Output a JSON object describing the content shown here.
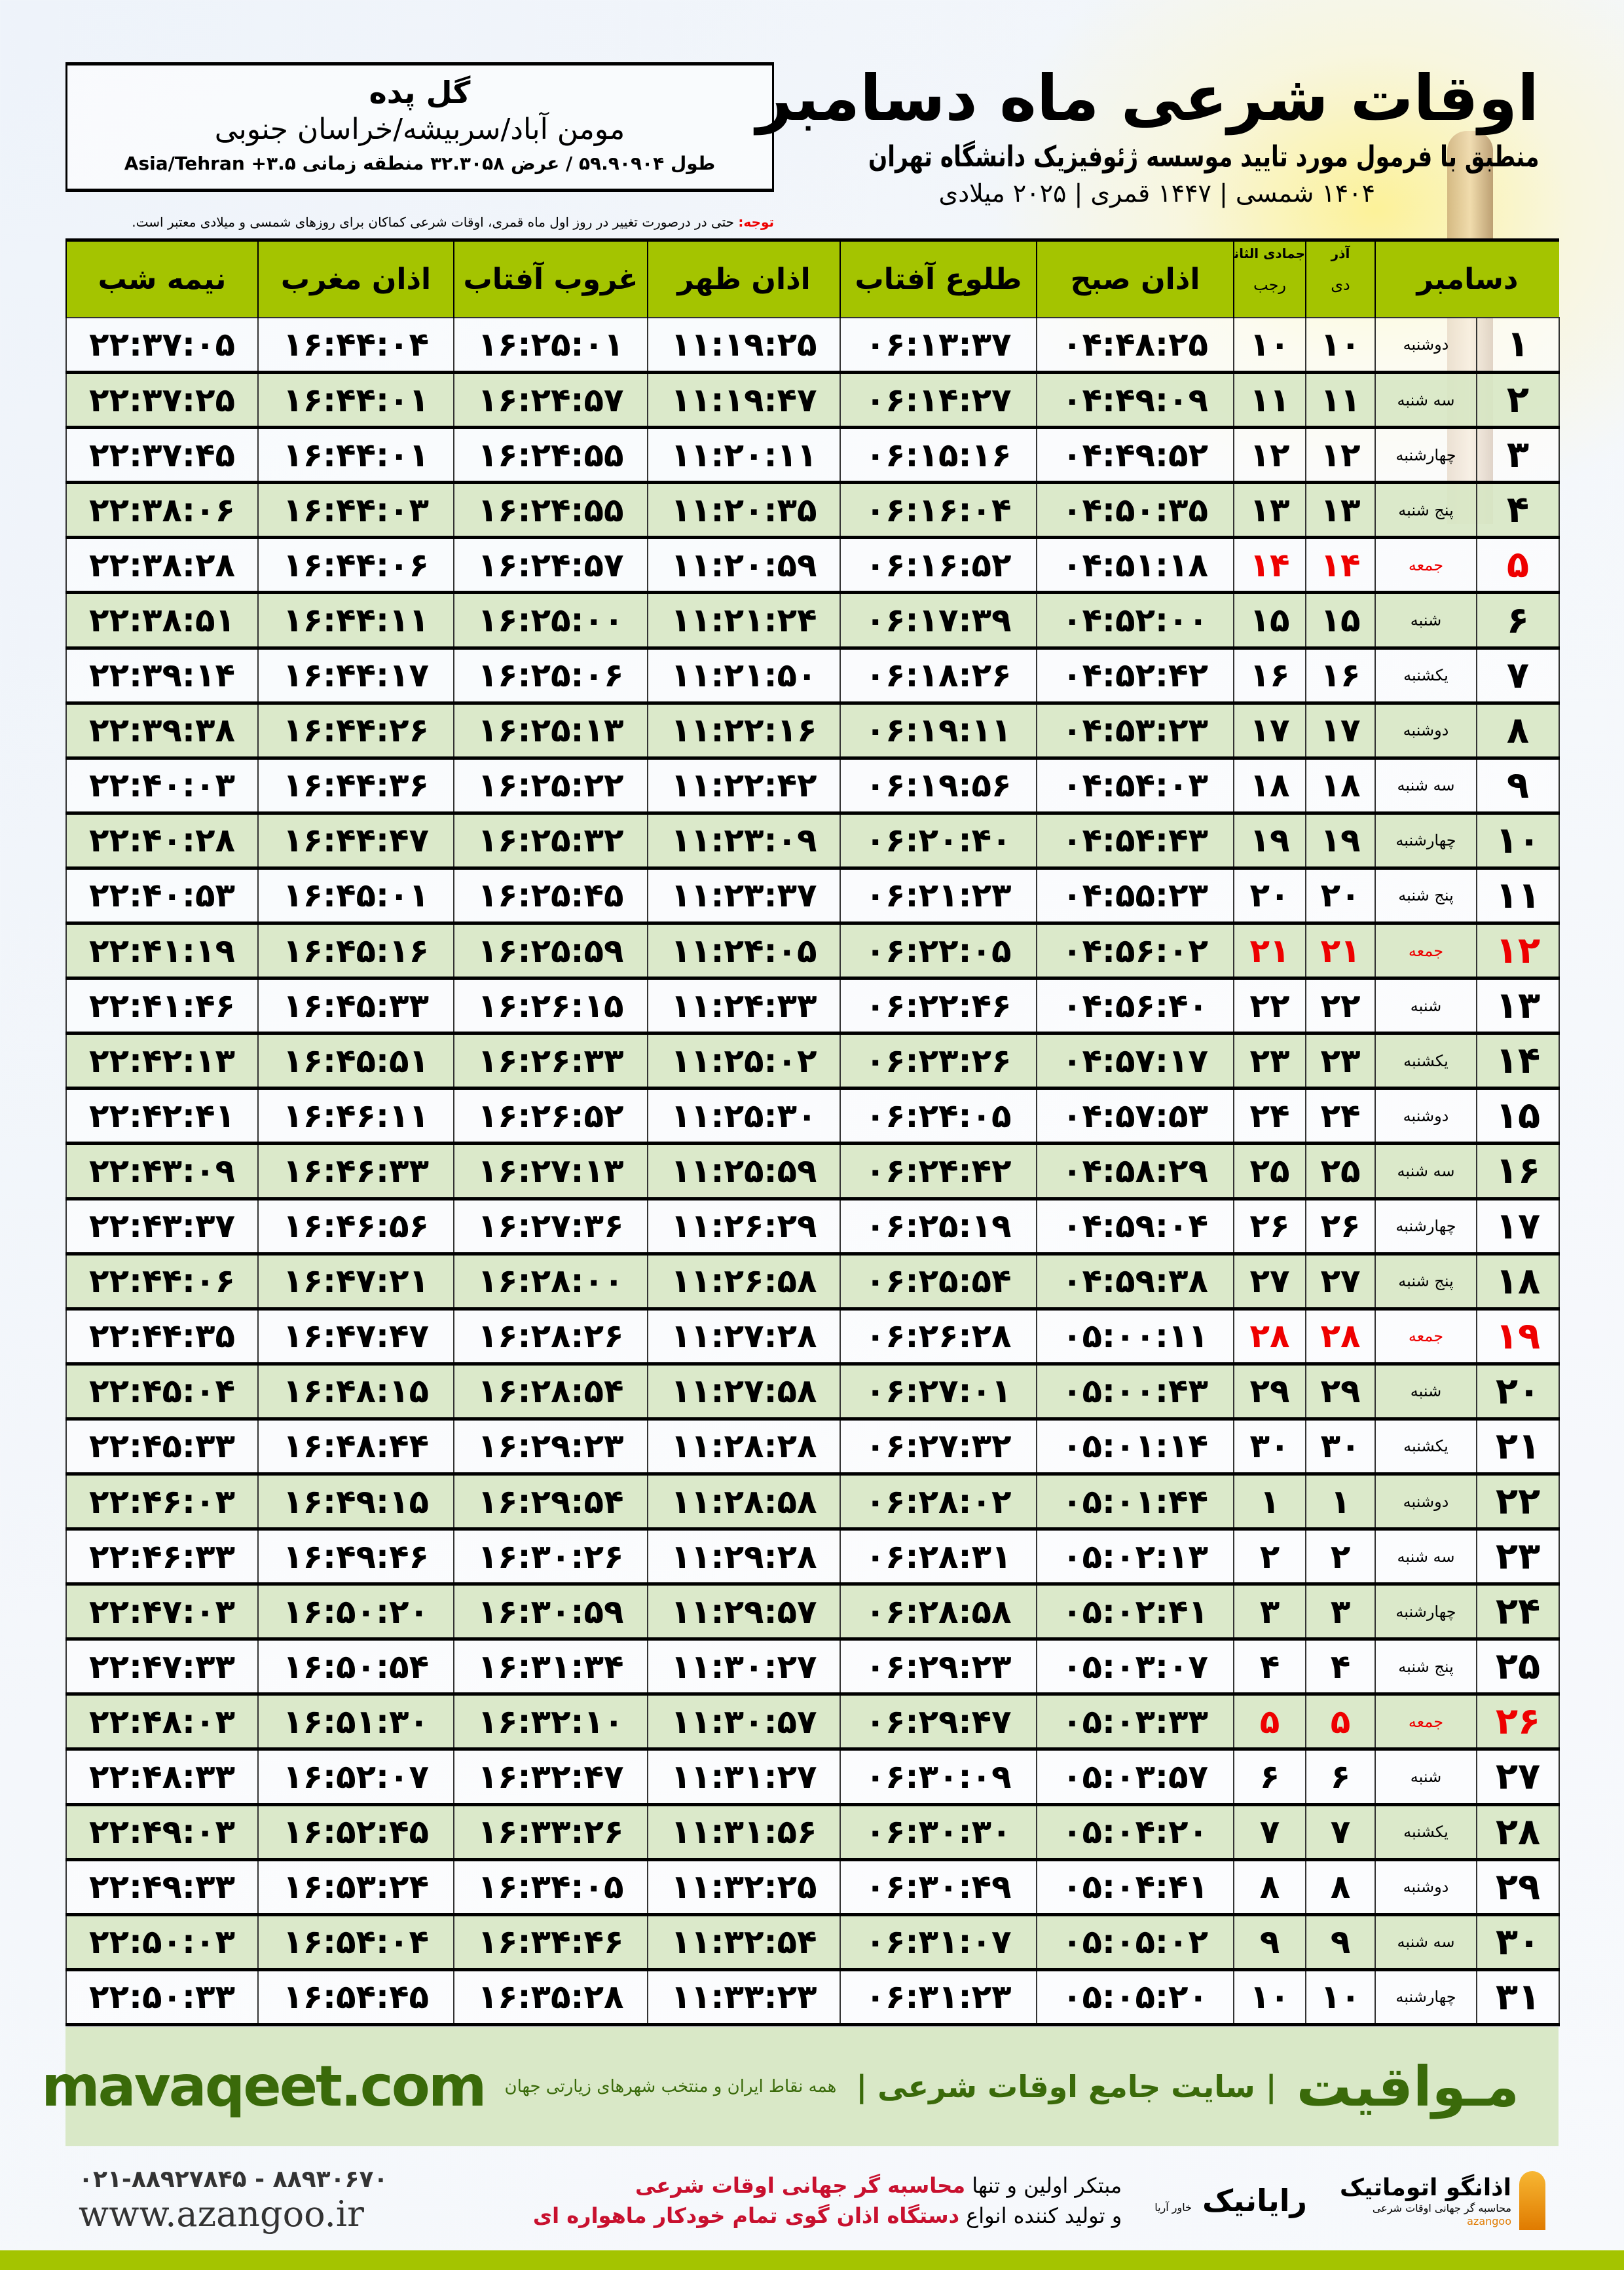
{
  "location": {
    "name": "گل پده",
    "path": "مومن آباد/سربیشه/خراسان جنوبی",
    "coords": "طول ۵۹.۹۰۹۰۴ / عرض ۳۲.۳۰۵۸ منطقه زمانی ۳.۵+ Asia/Tehran"
  },
  "header": {
    "title": "اوقات شرعی ماه دسامبر",
    "subtitle": "منطبق با فرمول مورد تایید موسسه ژئوفیزیک دانشگاه تهران",
    "years": "۱۴۰۴ شمسی | ۱۴۴۷ قمری | ۲۰۲۵ میلادی",
    "note_label": "توجه:",
    "note_text": " حتی در درصورت تغییر در روز اول ماه قمری، اوقات شرعی کماکان برای روزهای شمسی و میلادی معتبر است."
  },
  "table": {
    "headers": {
      "day": "دسامبر",
      "shamsi_months": "آذر",
      "shamsi_sub": "دی",
      "qamari_months": "جمادی الثانی",
      "qamari_sub": "رجب",
      "sobh": "اذان صبح",
      "tolu": "طلوع آفتاب",
      "zohr": "اذان ظهر",
      "ghorub": "غروب آفتاب",
      "maghreb": "اذان مغرب",
      "nimeshab": "نیمه شب"
    },
    "friday_color": "#e00000",
    "header_color": "#a4c400",
    "rows": [
      [
        "۱",
        "دوشنبه",
        "۱۰",
        "۱۰",
        "۰۴:۴۸:۲۵",
        "۰۶:۱۳:۳۷",
        "۱۱:۱۹:۲۵",
        "۱۶:۲۵:۰۱",
        "۱۶:۴۴:۰۴",
        "۲۲:۳۷:۰۵"
      ],
      [
        "۲",
        "سه شنبه",
        "۱۱",
        "۱۱",
        "۰۴:۴۹:۰۹",
        "۰۶:۱۴:۲۷",
        "۱۱:۱۹:۴۷",
        "۱۶:۲۴:۵۷",
        "۱۶:۴۴:۰۱",
        "۲۲:۳۷:۲۵"
      ],
      [
        "۳",
        "چهارشنبه",
        "۱۲",
        "۱۲",
        "۰۴:۴۹:۵۲",
        "۰۶:۱۵:۱۶",
        "۱۱:۲۰:۱۱",
        "۱۶:۲۴:۵۵",
        "۱۶:۴۴:۰۱",
        "۲۲:۳۷:۴۵"
      ],
      [
        "۴",
        "پنج شنبه",
        "۱۳",
        "۱۳",
        "۰۴:۵۰:۳۵",
        "۰۶:۱۶:۰۴",
        "۱۱:۲۰:۳۵",
        "۱۶:۲۴:۵۵",
        "۱۶:۴۴:۰۳",
        "۲۲:۳۸:۰۶"
      ],
      [
        "۵",
        "جمعه",
        "۱۴",
        "۱۴",
        "۰۴:۵۱:۱۸",
        "۰۶:۱۶:۵۲",
        "۱۱:۲۰:۵۹",
        "۱۶:۲۴:۵۷",
        "۱۶:۴۴:۰۶",
        "۲۲:۳۸:۲۸"
      ],
      [
        "۶",
        "شنبه",
        "۱۵",
        "۱۵",
        "۰۴:۵۲:۰۰",
        "۰۶:۱۷:۳۹",
        "۱۱:۲۱:۲۴",
        "۱۶:۲۵:۰۰",
        "۱۶:۴۴:۱۱",
        "۲۲:۳۸:۵۱"
      ],
      [
        "۷",
        "یکشنبه",
        "۱۶",
        "۱۶",
        "۰۴:۵۲:۴۲",
        "۰۶:۱۸:۲۶",
        "۱۱:۲۱:۵۰",
        "۱۶:۲۵:۰۶",
        "۱۶:۴۴:۱۷",
        "۲۲:۳۹:۱۴"
      ],
      [
        "۸",
        "دوشنبه",
        "۱۷",
        "۱۷",
        "۰۴:۵۳:۲۳",
        "۰۶:۱۹:۱۱",
        "۱۱:۲۲:۱۶",
        "۱۶:۲۵:۱۳",
        "۱۶:۴۴:۲۶",
        "۲۲:۳۹:۳۸"
      ],
      [
        "۹",
        "سه شنبه",
        "۱۸",
        "۱۸",
        "۰۴:۵۴:۰۳",
        "۰۶:۱۹:۵۶",
        "۱۱:۲۲:۴۲",
        "۱۶:۲۵:۲۲",
        "۱۶:۴۴:۳۶",
        "۲۲:۴۰:۰۳"
      ],
      [
        "۱۰",
        "چهارشنبه",
        "۱۹",
        "۱۹",
        "۰۴:۵۴:۴۳",
        "۰۶:۲۰:۴۰",
        "۱۱:۲۳:۰۹",
        "۱۶:۲۵:۳۲",
        "۱۶:۴۴:۴۷",
        "۲۲:۴۰:۲۸"
      ],
      [
        "۱۱",
        "پنج شنبه",
        "۲۰",
        "۲۰",
        "۰۴:۵۵:۲۳",
        "۰۶:۲۱:۲۳",
        "۱۱:۲۳:۳۷",
        "۱۶:۲۵:۴۵",
        "۱۶:۴۵:۰۱",
        "۲۲:۴۰:۵۳"
      ],
      [
        "۱۲",
        "جمعه",
        "۲۱",
        "۲۱",
        "۰۴:۵۶:۰۲",
        "۰۶:۲۲:۰۵",
        "۱۱:۲۴:۰۵",
        "۱۶:۲۵:۵۹",
        "۱۶:۴۵:۱۶",
        "۲۲:۴۱:۱۹"
      ],
      [
        "۱۳",
        "شنبه",
        "۲۲",
        "۲۲",
        "۰۴:۵۶:۴۰",
        "۰۶:۲۲:۴۶",
        "۱۱:۲۴:۳۳",
        "۱۶:۲۶:۱۵",
        "۱۶:۴۵:۳۳",
        "۲۲:۴۱:۴۶"
      ],
      [
        "۱۴",
        "یکشنبه",
        "۲۳",
        "۲۳",
        "۰۴:۵۷:۱۷",
        "۰۶:۲۳:۲۶",
        "۱۱:۲۵:۰۲",
        "۱۶:۲۶:۳۳",
        "۱۶:۴۵:۵۱",
        "۲۲:۴۲:۱۳"
      ],
      [
        "۱۵",
        "دوشنبه",
        "۲۴",
        "۲۴",
        "۰۴:۵۷:۵۳",
        "۰۶:۲۴:۰۵",
        "۱۱:۲۵:۳۰",
        "۱۶:۲۶:۵۲",
        "۱۶:۴۶:۱۱",
        "۲۲:۴۲:۴۱"
      ],
      [
        "۱۶",
        "سه شنبه",
        "۲۵",
        "۲۵",
        "۰۴:۵۸:۲۹",
        "۰۶:۲۴:۴۲",
        "۱۱:۲۵:۵۹",
        "۱۶:۲۷:۱۳",
        "۱۶:۴۶:۳۳",
        "۲۲:۴۳:۰۹"
      ],
      [
        "۱۷",
        "چهارشنبه",
        "۲۶",
        "۲۶",
        "۰۴:۵۹:۰۴",
        "۰۶:۲۵:۱۹",
        "۱۱:۲۶:۲۹",
        "۱۶:۲۷:۳۶",
        "۱۶:۴۶:۵۶",
        "۲۲:۴۳:۳۷"
      ],
      [
        "۱۸",
        "پنج شنبه",
        "۲۷",
        "۲۷",
        "۰۴:۵۹:۳۸",
        "۰۶:۲۵:۵۴",
        "۱۱:۲۶:۵۸",
        "۱۶:۲۸:۰۰",
        "۱۶:۴۷:۲۱",
        "۲۲:۴۴:۰۶"
      ],
      [
        "۱۹",
        "جمعه",
        "۲۸",
        "۲۸",
        "۰۵:۰۰:۱۱",
        "۰۶:۲۶:۲۸",
        "۱۱:۲۷:۲۸",
        "۱۶:۲۸:۲۶",
        "۱۶:۴۷:۴۷",
        "۲۲:۴۴:۳۵"
      ],
      [
        "۲۰",
        "شنبه",
        "۲۹",
        "۲۹",
        "۰۵:۰۰:۴۳",
        "۰۶:۲۷:۰۱",
        "۱۱:۲۷:۵۸",
        "۱۶:۲۸:۵۴",
        "۱۶:۴۸:۱۵",
        "۲۲:۴۵:۰۴"
      ],
      [
        "۲۱",
        "یکشنبه",
        "۳۰",
        "۳۰",
        "۰۵:۰۱:۱۴",
        "۰۶:۲۷:۳۲",
        "۱۱:۲۸:۲۸",
        "۱۶:۲۹:۲۳",
        "۱۶:۴۸:۴۴",
        "۲۲:۴۵:۳۳"
      ],
      [
        "۲۲",
        "دوشنبه",
        "۱",
        "۱",
        "۰۵:۰۱:۴۴",
        "۰۶:۲۸:۰۲",
        "۱۱:۲۸:۵۸",
        "۱۶:۲۹:۵۴",
        "۱۶:۴۹:۱۵",
        "۲۲:۴۶:۰۳"
      ],
      [
        "۲۳",
        "سه شنبه",
        "۲",
        "۲",
        "۰۵:۰۲:۱۳",
        "۰۶:۲۸:۳۱",
        "۱۱:۲۹:۲۸",
        "۱۶:۳۰:۲۶",
        "۱۶:۴۹:۴۶",
        "۲۲:۴۶:۳۳"
      ],
      [
        "۲۴",
        "چهارشنبه",
        "۳",
        "۳",
        "۰۵:۰۲:۴۱",
        "۰۶:۲۸:۵۸",
        "۱۱:۲۹:۵۷",
        "۱۶:۳۰:۵۹",
        "۱۶:۵۰:۲۰",
        "۲۲:۴۷:۰۳"
      ],
      [
        "۲۵",
        "پنج شنبه",
        "۴",
        "۴",
        "۰۵:۰۳:۰۷",
        "۰۶:۲۹:۲۳",
        "۱۱:۳۰:۲۷",
        "۱۶:۳۱:۳۴",
        "۱۶:۵۰:۵۴",
        "۲۲:۴۷:۳۳"
      ],
      [
        "۲۶",
        "جمعه",
        "۵",
        "۵",
        "۰۵:۰۳:۳۳",
        "۰۶:۲۹:۴۷",
        "۱۱:۳۰:۵۷",
        "۱۶:۳۲:۱۰",
        "۱۶:۵۱:۳۰",
        "۲۲:۴۸:۰۳"
      ],
      [
        "۲۷",
        "شنبه",
        "۶",
        "۶",
        "۰۵:۰۳:۵۷",
        "۰۶:۳۰:۰۹",
        "۱۱:۳۱:۲۷",
        "۱۶:۳۲:۴۷",
        "۱۶:۵۲:۰۷",
        "۲۲:۴۸:۳۳"
      ],
      [
        "۲۸",
        "یکشنبه",
        "۷",
        "۷",
        "۰۵:۰۴:۲۰",
        "۰۶:۳۰:۳۰",
        "۱۱:۳۱:۵۶",
        "۱۶:۳۳:۲۶",
        "۱۶:۵۲:۴۵",
        "۲۲:۴۹:۰۳"
      ],
      [
        "۲۹",
        "دوشنبه",
        "۸",
        "۸",
        "۰۵:۰۴:۴۱",
        "۰۶:۳۰:۴۹",
        "۱۱:۳۲:۲۵",
        "۱۶:۳۴:۰۵",
        "۱۶:۵۳:۲۴",
        "۲۲:۴۹:۳۳"
      ],
      [
        "۳۰",
        "سه شنبه",
        "۹",
        "۹",
        "۰۵:۰۵:۰۲",
        "۰۶:۳۱:۰۷",
        "۱۱:۳۲:۵۴",
        "۱۶:۳۴:۴۶",
        "۱۶:۵۴:۰۴",
        "۲۲:۵۰:۰۳"
      ],
      [
        "۳۱",
        "چهارشنبه",
        "۱۰",
        "۱۰",
        "۰۵:۰۵:۲۰",
        "۰۶:۳۱:۲۳",
        "۱۱:۳۳:۲۳",
        "۱۶:۳۵:۲۸",
        "۱۶:۵۴:۴۵",
        "۲۲:۵۰:۳۳"
      ]
    ]
  },
  "footer": {
    "brand": "مـواقیت",
    "brand_sub": "| سایت جامع اوقات شرعی |",
    "brand_sub2": "همه نقاط ایران و منتخب شهرهای زیارتی جهان",
    "site": "mavaqeet.com",
    "brand_color": "#3a6a0a"
  },
  "ads": {
    "logo1": "اذانگو اتوماتیک",
    "logo1_sub": "محاسبه گر جهانی اوقات شرعی",
    "logo1_latin": "azangoo",
    "logo2": "رایانیک",
    "logo2_sub": "خاور آریا",
    "line1_a": "مبتکر اولین و تنها ",
    "line1_b": "محاسبه گر جهانی اوقات شرعی",
    "line2_a": "و تولید کننده انواع ",
    "line2_b": "دستگاه اذان گوی تمام خودکار ماهواره ای",
    "phones": "۰۲۱-۸۸۹۲۷۸۴۵ - ۸۸۹۳۰۶۷۰",
    "web": "www.azangoo.ir"
  }
}
